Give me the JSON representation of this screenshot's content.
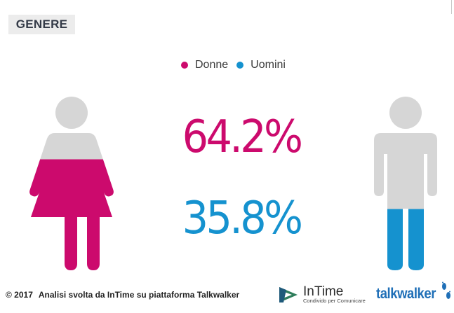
{
  "section": {
    "title": "GENERE"
  },
  "legend": [
    {
      "label": "Donne",
      "color": "#cc0a6d"
    },
    {
      "label": "Uomini",
      "color": "#1592cf"
    }
  ],
  "chart_data": {
    "type": "pictograph",
    "categories": [
      "Donne",
      "Uomini"
    ],
    "values": [
      64.2,
      35.8
    ],
    "value_labels": [
      "64.2%",
      "35.8%"
    ],
    "unit": "%",
    "colors": {
      "Donne": "#cc0a6d",
      "Uomini": "#1592cf",
      "empty": "#d6d6d6"
    },
    "icons": [
      "female-figure-icon",
      "male-figure-icon"
    ],
    "legend_position": "top-center"
  },
  "footer": {
    "copyright": "© 2017",
    "credit": "Analisi svolta da InTime su piattaforma Talkwalker"
  },
  "logos": {
    "intime": {
      "name": "InTime",
      "tagline": "Condivido per Comunicare"
    },
    "talkwalker": {
      "name": "talkwalker"
    }
  }
}
